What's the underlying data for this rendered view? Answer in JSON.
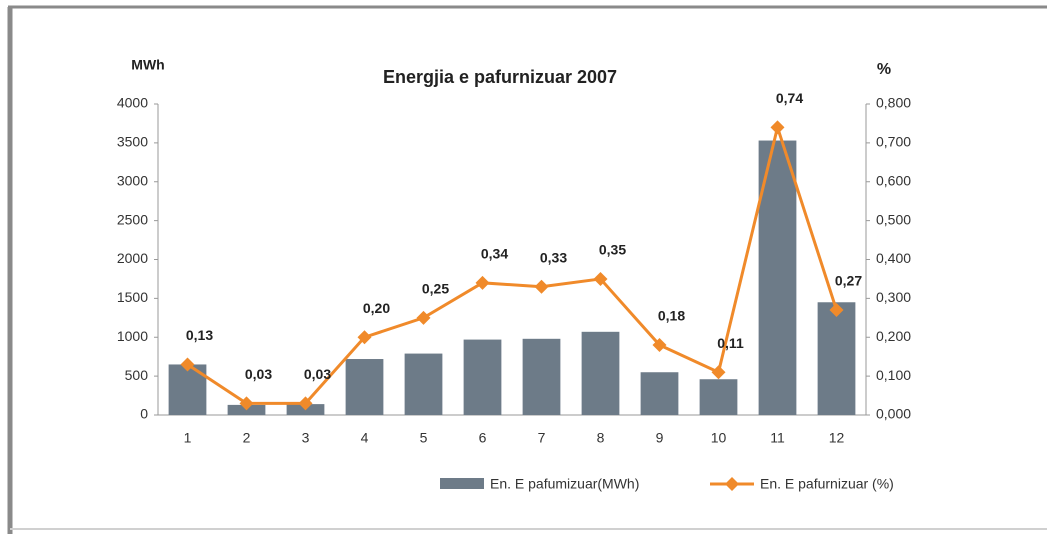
{
  "chart_data": {
    "type": "bar",
    "title": "Energjia e pafurnizuar 2007",
    "ylabel": "MWh",
    "y2label": "%",
    "categories": [
      "1",
      "2",
      "3",
      "4",
      "5",
      "6",
      "7",
      "8",
      "9",
      "10",
      "11",
      "12"
    ],
    "series": [
      {
        "name": "En. E pafumizuar(MWh)",
        "type": "bar",
        "color": "#6d7b88",
        "values": [
          650,
          130,
          140,
          720,
          790,
          970,
          980,
          1070,
          550,
          460,
          3530,
          1450
        ]
      },
      {
        "name": "En. E pafurnizuar (%)",
        "type": "line",
        "axis": "y2",
        "color": "#f08a2a",
        "values": [
          0.13,
          0.03,
          0.03,
          0.2,
          0.25,
          0.34,
          0.33,
          0.35,
          0.18,
          0.11,
          0.74,
          0.27
        ],
        "value_labels": [
          "0,13",
          "0,03",
          "0,03",
          "0,20",
          "0,25",
          "0,34",
          "0,33",
          "0,35",
          "0,18",
          "0,11",
          "0,74",
          "0,27"
        ]
      }
    ],
    "ylim": [
      0,
      4000
    ],
    "yticks": [
      0,
      500,
      1000,
      1500,
      2000,
      2500,
      3000,
      3500,
      4000
    ],
    "y2lim": [
      0,
      0.8
    ],
    "y2ticks": [
      {
        "value": 0,
        "label": "0,000"
      },
      {
        "value": 0.1,
        "label": "0,100"
      },
      {
        "value": 0.2,
        "label": "0,200"
      },
      {
        "value": 0.3,
        "label": "0,300"
      },
      {
        "value": 0.4,
        "label": "0,400"
      },
      {
        "value": 0.5,
        "label": "0,500"
      },
      {
        "value": 0.6,
        "label": "0,600"
      },
      {
        "value": 0.7,
        "label": "0,700"
      },
      {
        "value": 0.8,
        "label": "0,800"
      }
    ],
    "grid": false,
    "legend": "bottom"
  }
}
